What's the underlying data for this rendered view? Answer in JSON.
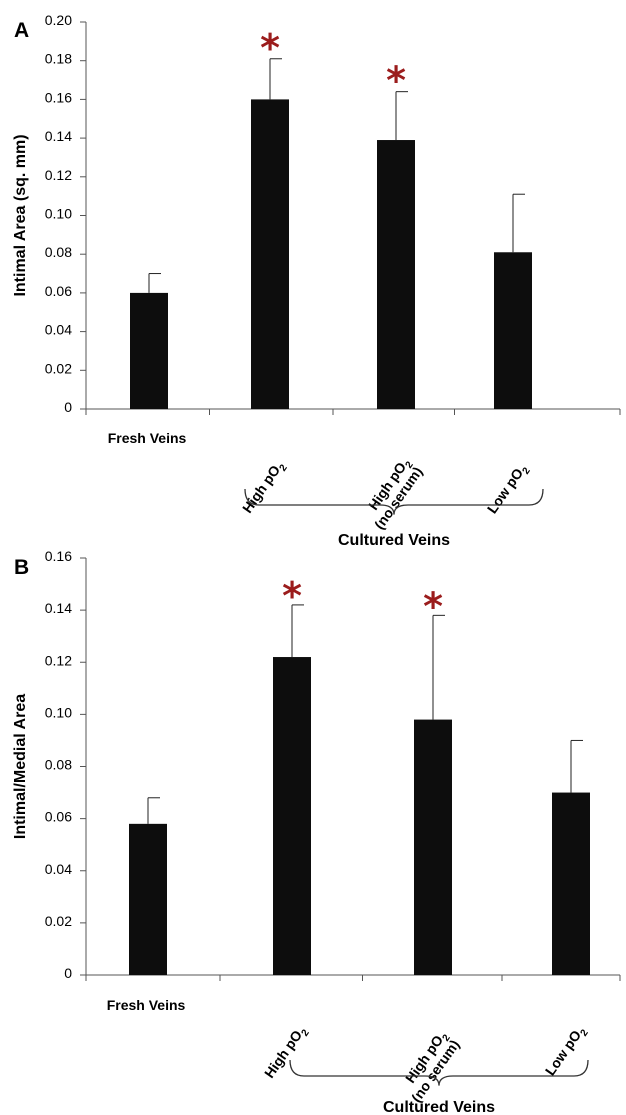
{
  "chart_data": [
    {
      "type": "bar",
      "panel": "A",
      "ylabel": "Intimal Area (sq. mm)",
      "ylim": [
        0,
        0.2
      ],
      "yticks": [
        "0",
        "0.02",
        "0.04",
        "0.06",
        "0.08",
        "0.10",
        "0.12",
        "0.14",
        "0.16",
        "0.18",
        "0.20"
      ],
      "categories": [
        {
          "main": "Fresh Veins",
          "sub": "",
          "tail": "",
          "line2": ""
        },
        {
          "main": "High pO",
          "sub": "2",
          "tail": "",
          "line2": ""
        },
        {
          "main": "High pO",
          "sub": "2",
          "tail": "",
          "line2": "(no serum)"
        },
        {
          "main": "Low pO",
          "sub": "2",
          "tail": "",
          "line2": ""
        }
      ],
      "values": [
        0.06,
        0.16,
        0.139,
        0.081
      ],
      "errors": [
        0.01,
        0.021,
        0.025,
        0.03
      ],
      "significant": [
        false,
        true,
        true,
        false
      ],
      "annotation_symbol": "*",
      "group_label": "Cultured Veins",
      "colors": {
        "bar": "#0d0d0d",
        "star": "#9b1c1c"
      }
    },
    {
      "type": "bar",
      "panel": "B",
      "ylabel": "Intimal/Medial Area",
      "ylim": [
        0,
        0.16
      ],
      "yticks": [
        "0",
        "0.02",
        "0.04",
        "0.06",
        "0.08",
        "0.10",
        "0.12",
        "0.14",
        "0.16"
      ],
      "categories": [
        {
          "main": "Fresh Veins",
          "sub": "",
          "tail": "",
          "line2": ""
        },
        {
          "main": "High pO",
          "sub": "2",
          "tail": "",
          "line2": ""
        },
        {
          "main": "High pO",
          "sub": "2",
          "tail": "",
          "line2": "(no serum)"
        },
        {
          "main": "Low pO",
          "sub": "2",
          "tail": "",
          "line2": ""
        }
      ],
      "values": [
        0.058,
        0.122,
        0.098,
        0.07
      ],
      "errors": [
        0.01,
        0.02,
        0.04,
        0.02
      ],
      "significant": [
        false,
        true,
        true,
        false
      ],
      "annotation_symbol": "*",
      "group_label": "Cultured Veins",
      "colors": {
        "bar": "#0d0d0d",
        "star": "#9b1c1c"
      }
    }
  ]
}
